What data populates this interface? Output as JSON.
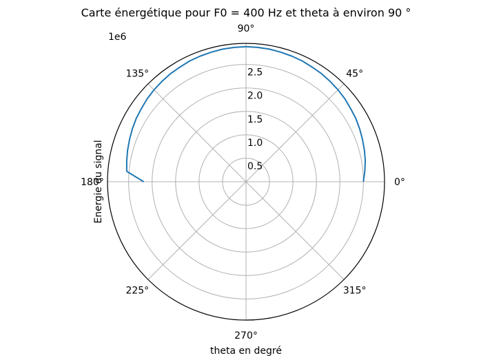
{
  "chart_data": {
    "type": "line",
    "projection": "polar",
    "title": "Carte énergétique pour F0 = 400 Hz et theta à environ 90 °",
    "xlabel": "theta en degré",
    "ylabel": "Energie du signal",
    "offset_label": "1e6",
    "angle_unit": "degrees",
    "angular_ticks": [
      "0°",
      "45°",
      "90°",
      "135°",
      "180°",
      "225°",
      "270°",
      "315°"
    ],
    "radial_ticks": [
      0.5,
      1.0,
      1.5,
      2.0,
      2.5
    ],
    "radial_tick_labels": [
      "0.5",
      "1.0",
      "1.5",
      "2.0",
      "2.5"
    ],
    "rlim": [
      0,
      2.95
    ],
    "grid": true,
    "series": [
      {
        "color": "#1f77b4",
        "theta": [
          0,
          5,
          10,
          15,
          20,
          25,
          30,
          35,
          40,
          45,
          50,
          55,
          60,
          65,
          70,
          75,
          80,
          85,
          90,
          95,
          100,
          105,
          110,
          115,
          120,
          125,
          130,
          135,
          140,
          145,
          150,
          155,
          160,
          165,
          170,
          175,
          180
        ],
        "r": [
          2.5,
          2.54,
          2.58,
          2.61,
          2.64,
          2.67,
          2.7,
          2.72,
          2.75,
          2.77,
          2.79,
          2.81,
          2.82,
          2.84,
          2.85,
          2.86,
          2.87,
          2.875,
          2.88,
          2.875,
          2.87,
          2.86,
          2.85,
          2.84,
          2.82,
          2.81,
          2.79,
          2.77,
          2.75,
          2.72,
          2.7,
          2.67,
          2.64,
          2.61,
          2.58,
          2.55,
          2.18
        ]
      }
    ]
  }
}
